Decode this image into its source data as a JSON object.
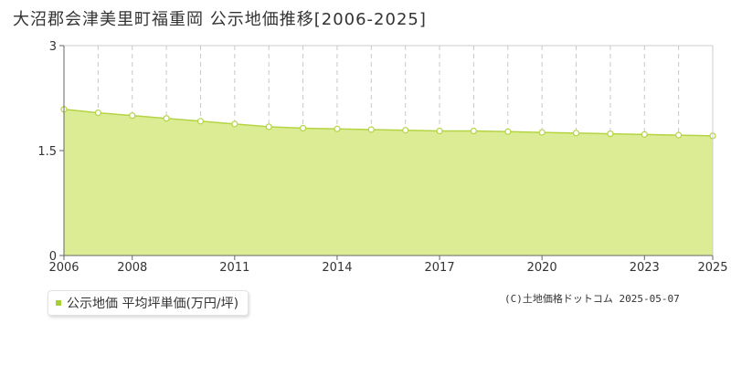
{
  "title": "大沼郡会津美里町福重岡 公示地価推移[2006-2025]",
  "legend_label": "公示地価 平均坪単価(万円/坪)",
  "copyright": "(C)土地価格ドットコム 2025-05-07",
  "colors": {
    "area_fill": "#dcec94",
    "line": "#b5d444",
    "marker_fill": "#ffffff",
    "grid": "#c8c8c8",
    "legend_swatch": "#a9cf38"
  },
  "chart_data": {
    "type": "area",
    "title": "大沼郡会津美里町福重岡 公示地価推移[2006-2025]",
    "x": [
      2006,
      2007,
      2008,
      2009,
      2010,
      2011,
      2012,
      2013,
      2014,
      2015,
      2016,
      2017,
      2018,
      2019,
      2020,
      2021,
      2022,
      2023,
      2024,
      2025
    ],
    "series": [
      {
        "name": "公示地価 平均坪単価(万円/坪)",
        "values": [
          2.09,
          2.04,
          2.0,
          1.96,
          1.92,
          1.88,
          1.84,
          1.82,
          1.81,
          1.8,
          1.79,
          1.78,
          1.78,
          1.77,
          1.76,
          1.75,
          1.74,
          1.73,
          1.72,
          1.71
        ]
      }
    ],
    "ylim": [
      0,
      3
    ],
    "yticks": [
      "0",
      "1.5",
      "3"
    ],
    "ytick_values": [
      0,
      1.5,
      3
    ],
    "xticks": [
      2006,
      2008,
      2011,
      2014,
      2017,
      2020,
      2023,
      2025
    ],
    "xlabel": "",
    "ylabel": "",
    "grid": true
  }
}
